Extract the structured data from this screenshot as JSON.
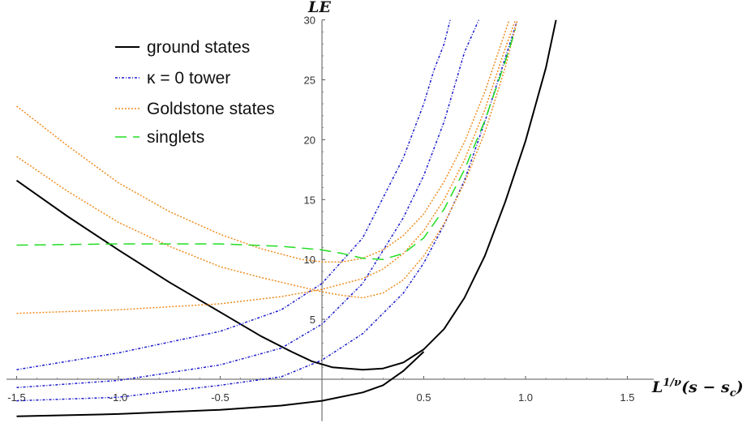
{
  "chart_data": {
    "type": "line",
    "xlabel": "L^{1/ν}(s − s_c)",
    "ylabel": "LE",
    "xlim": [
      -1.55,
      1.55
    ],
    "ylim": [
      -3.5,
      30
    ],
    "x_ticks": [
      "-1.5",
      "-1.0",
      "-0.5",
      "0.5",
      "1.0",
      "1.5"
    ],
    "y_ticks": [
      "5",
      "10",
      "15",
      "20",
      "25",
      "30"
    ],
    "grid": false,
    "legend_position": "top-left",
    "series": [
      {
        "name": "ground states",
        "color": "#000000",
        "dash": "solid",
        "curves": [
          [
            [
              -1.5,
              16.6
            ],
            [
              -1.25,
              13.6
            ],
            [
              -1.0,
              10.8
            ],
            [
              -0.75,
              8.1
            ],
            [
              -0.5,
              5.6
            ],
            [
              -0.3,
              3.6
            ],
            [
              -0.15,
              2.3
            ],
            [
              -0.05,
              1.5
            ],
            [
              0.05,
              1.0
            ],
            [
              0.2,
              0.8
            ],
            [
              0.3,
              0.9
            ],
            [
              0.4,
              1.4
            ],
            [
              0.5,
              2.5
            ],
            [
              0.6,
              4.2
            ],
            [
              0.7,
              6.8
            ],
            [
              0.8,
              10.3
            ],
            [
              0.9,
              14.8
            ],
            [
              1.0,
              19.9
            ],
            [
              1.1,
              26.0
            ],
            [
              1.15,
              30.0
            ]
          ],
          [
            [
              -1.5,
              -3.1
            ],
            [
              -1.0,
              -2.9
            ],
            [
              -0.5,
              -2.55
            ],
            [
              -0.2,
              -2.2
            ],
            [
              0.0,
              -1.8
            ],
            [
              0.2,
              -1.1
            ],
            [
              0.3,
              -0.5
            ],
            [
              0.4,
              0.7
            ],
            [
              0.5,
              2.3
            ]
          ]
        ]
      },
      {
        "name": "κ = 0 tower",
        "color": "#1a1acd",
        "dash": "3,2,1,2",
        "curves": [
          [
            [
              -1.5,
              0.8
            ],
            [
              -1.0,
              2.2
            ],
            [
              -0.5,
              4.0
            ],
            [
              -0.2,
              5.8
            ],
            [
              0.0,
              8.0
            ],
            [
              0.2,
              11.8
            ],
            [
              0.4,
              18.5
            ],
            [
              0.5,
              23.0
            ],
            [
              0.55,
              25.8
            ],
            [
              0.6,
              28.0
            ],
            [
              0.63,
              30.0
            ]
          ],
          [
            [
              -1.5,
              -0.7
            ],
            [
              -1.0,
              -0.1
            ],
            [
              -0.5,
              1.2
            ],
            [
              -0.2,
              2.6
            ],
            [
              0.0,
              4.6
            ],
            [
              0.2,
              8.0
            ],
            [
              0.4,
              13.5
            ],
            [
              0.5,
              17.0
            ],
            [
              0.6,
              21.5
            ],
            [
              0.7,
              27.3
            ],
            [
              0.77,
              30.0
            ]
          ],
          [
            [
              -1.5,
              -1.8
            ],
            [
              -1.0,
              -1.5
            ],
            [
              -0.5,
              -0.5
            ],
            [
              -0.2,
              0.2
            ],
            [
              0.0,
              1.6
            ],
            [
              0.2,
              3.8
            ],
            [
              0.4,
              7.2
            ],
            [
              0.5,
              9.7
            ],
            [
              0.6,
              12.9
            ],
            [
              0.7,
              16.6
            ],
            [
              0.8,
              21.5
            ],
            [
              0.9,
              26.8
            ],
            [
              0.96,
              30.0
            ]
          ]
        ]
      },
      {
        "name": "Goldstone states",
        "color": "#f08c1e",
        "dash": "2,2",
        "curves": [
          [
            [
              -1.5,
              22.8
            ],
            [
              -1.25,
              19.5
            ],
            [
              -1.0,
              16.4
            ],
            [
              -0.75,
              14.0
            ],
            [
              -0.5,
              12.1
            ],
            [
              -0.3,
              10.9
            ],
            [
              -0.1,
              10.0
            ],
            [
              0.0,
              9.8
            ],
            [
              0.1,
              9.8
            ],
            [
              0.2,
              10.1
            ],
            [
              0.3,
              10.8
            ],
            [
              0.4,
              12.0
            ],
            [
              0.5,
              13.8
            ],
            [
              0.6,
              16.5
            ],
            [
              0.7,
              19.8
            ],
            [
              0.8,
              24.0
            ],
            [
              0.85,
              26.5
            ],
            [
              0.92,
              30.0
            ]
          ],
          [
            [
              -1.5,
              18.6
            ],
            [
              -1.25,
              15.7
            ],
            [
              -1.0,
              13.1
            ],
            [
              -0.75,
              11.1
            ],
            [
              -0.5,
              9.4
            ],
            [
              -0.3,
              8.5
            ],
            [
              -0.1,
              7.7
            ],
            [
              0.0,
              7.3
            ],
            [
              0.1,
              7.0
            ],
            [
              0.2,
              6.8
            ],
            [
              0.3,
              7.2
            ],
            [
              0.4,
              8.3
            ],
            [
              0.5,
              10.3
            ],
            [
              0.6,
              13.0
            ],
            [
              0.7,
              16.4
            ],
            [
              0.8,
              20.6
            ],
            [
              0.9,
              26.0
            ],
            [
              0.96,
              30.0
            ]
          ],
          [
            [
              -1.5,
              5.5
            ],
            [
              -1.0,
              5.8
            ],
            [
              -0.5,
              6.3
            ],
            [
              -0.2,
              6.9
            ],
            [
              0.0,
              7.5
            ],
            [
              0.2,
              8.4
            ],
            [
              0.3,
              9.2
            ],
            [
              0.4,
              10.5
            ],
            [
              0.5,
              12.4
            ],
            [
              0.6,
              15.0
            ],
            [
              0.7,
              18.3
            ],
            [
              0.8,
              22.5
            ],
            [
              0.9,
              27.6
            ],
            [
              0.95,
              30.0
            ]
          ]
        ]
      },
      {
        "name": "singlets",
        "color": "#22dd22",
        "dash": "14,8",
        "curves": [
          [
            [
              -1.5,
              11.2
            ],
            [
              -1.0,
              11.3
            ],
            [
              -0.5,
              11.3
            ],
            [
              -0.2,
              11.1
            ],
            [
              0.0,
              10.8
            ],
            [
              0.1,
              10.5
            ],
            [
              0.2,
              10.1
            ],
            [
              0.3,
              10.0
            ],
            [
              0.4,
              10.5
            ],
            [
              0.5,
              11.8
            ],
            [
              0.6,
              14.2
            ],
            [
              0.7,
              17.5
            ],
            [
              0.8,
              21.6
            ],
            [
              0.9,
              26.5
            ],
            [
              0.95,
              29.2
            ]
          ]
        ]
      }
    ]
  }
}
